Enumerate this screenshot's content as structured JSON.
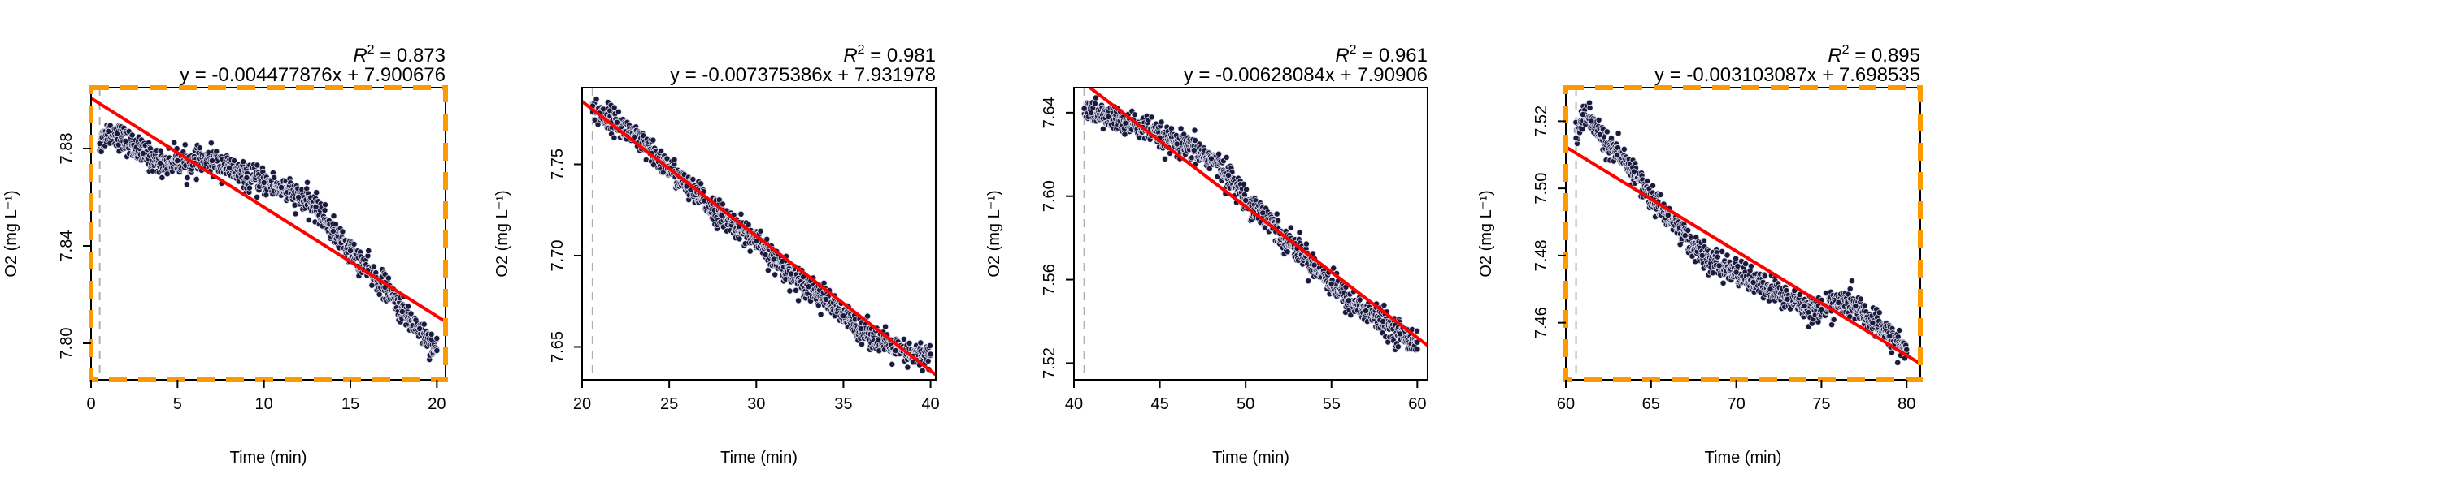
{
  "colors": {
    "point_fill": "#1a1a3a",
    "point_stroke": "#dcdcf0",
    "fit_line": "#ff0000",
    "vline": "#b0b0b0",
    "highlight_frame": "#ff9900",
    "frame": "#000000"
  },
  "chart_data": [
    {
      "type": "scatter",
      "title": "",
      "annotation_r2_prefix": "R",
      "annotation_r2_sup": "2",
      "annotation_r2_value": " = 0.873",
      "annotation_eq": "y = -0.004477876x + 7.900676",
      "xlabel": "Time (min)",
      "ylabel": "O2 (mg L⁻¹)",
      "xlim": [
        0,
        20.5
      ],
      "ylim": [
        7.785,
        7.905
      ],
      "xticks": [
        "0",
        "5",
        "10",
        "15",
        "20"
      ],
      "xtick_values": [
        0,
        5,
        10,
        15,
        20
      ],
      "yticks": [
        "7.80",
        "7.84",
        "7.88"
      ],
      "ytick_values": [
        7.8,
        7.84,
        7.88
      ],
      "highlighted": true,
      "vline_x": 0.5,
      "fit": {
        "slope": -0.004477876,
        "intercept": 7.900676,
        "x_range": [
          0,
          20.5
        ]
      },
      "series": [
        {
          "x": [
            0.5,
            1,
            1.5,
            2,
            3,
            4,
            5,
            6,
            7,
            8,
            9,
            10,
            11,
            12,
            13,
            14,
            15,
            16,
            17,
            18,
            19,
            20
          ],
          "y": [
            7.882,
            7.887,
            7.886,
            7.883,
            7.878,
            7.874,
            7.875,
            7.874,
            7.875,
            7.872,
            7.868,
            7.866,
            7.864,
            7.86,
            7.856,
            7.846,
            7.838,
            7.83,
            7.823,
            7.813,
            7.806,
            7.797
          ]
        }
      ]
    },
    {
      "type": "scatter",
      "title": "",
      "annotation_r2_prefix": "R",
      "annotation_r2_sup": "2",
      "annotation_r2_value": " = 0.981",
      "annotation_eq": "y = -0.007375386x + 7.931978",
      "xlabel": "Time (min)",
      "ylabel": "O2 (mg L⁻¹)",
      "xlim": [
        20,
        40.3
      ],
      "ylim": [
        7.632,
        7.792
      ],
      "xticks": [
        "20",
        "25",
        "30",
        "35",
        "40"
      ],
      "xtick_values": [
        20,
        25,
        30,
        35,
        40
      ],
      "yticks": [
        "7.65",
        "7.70",
        "7.75"
      ],
      "ytick_values": [
        7.65,
        7.7,
        7.75
      ],
      "highlighted": false,
      "vline_x": 20.6,
      "fit": {
        "slope": -0.007375386,
        "intercept": 7.931978,
        "x_range": [
          20,
          40.3
        ]
      },
      "series": [
        {
          "x": [
            20.6,
            21,
            22,
            23,
            24,
            25,
            26,
            27,
            28,
            29,
            30,
            31,
            32,
            33,
            34,
            35,
            36,
            37,
            38,
            39,
            40
          ],
          "y": [
            7.782,
            7.778,
            7.773,
            7.765,
            7.756,
            7.748,
            7.738,
            7.73,
            7.722,
            7.716,
            7.708,
            7.698,
            7.69,
            7.683,
            7.676,
            7.667,
            7.66,
            7.654,
            7.648,
            7.645,
            7.646
          ]
        }
      ]
    },
    {
      "type": "scatter",
      "title": "",
      "annotation_r2_prefix": "R",
      "annotation_r2_sup": "2",
      "annotation_r2_value": " = 0.961",
      "annotation_eq": "y = -0.00628084x + 7.90906",
      "xlabel": "Time (min)",
      "ylabel": "O2 (mg L⁻¹)",
      "xlim": [
        40,
        60.6
      ],
      "ylim": [
        7.512,
        7.652
      ],
      "xticks": [
        "40",
        "45",
        "50",
        "55",
        "60"
      ],
      "xtick_values": [
        40,
        45,
        50,
        55,
        60
      ],
      "yticks": [
        "7.52",
        "7.56",
        "7.60",
        "7.64"
      ],
      "ytick_values": [
        7.52,
        7.56,
        7.6,
        7.64
      ],
      "highlighted": false,
      "vline_x": 40.6,
      "fit": {
        "slope": -0.00628084,
        "intercept": 7.90906,
        "x_range": [
          40,
          60.6
        ]
      },
      "series": [
        {
          "x": [
            40.6,
            41,
            42,
            43,
            44,
            45,
            46,
            47,
            48,
            49,
            50,
            51,
            52,
            53,
            54,
            55,
            56,
            57,
            58,
            59,
            60
          ],
          "y": [
            7.642,
            7.64,
            7.638,
            7.635,
            7.633,
            7.628,
            7.625,
            7.622,
            7.618,
            7.61,
            7.598,
            7.592,
            7.582,
            7.575,
            7.567,
            7.558,
            7.55,
            7.545,
            7.54,
            7.534,
            7.53
          ]
        }
      ]
    },
    {
      "type": "scatter",
      "title": "",
      "annotation_r2_prefix": "R",
      "annotation_r2_sup": "2",
      "annotation_r2_value": " = 0.895",
      "annotation_eq": "y = -0.003103087x + 7.698535",
      "xlabel": "Time (min)",
      "ylabel": "O2 (mg L⁻¹)",
      "xlim": [
        60,
        80.8
      ],
      "ylim": [
        7.443,
        7.53
      ],
      "xticks": [
        "60",
        "65",
        "70",
        "75",
        "80"
      ],
      "xtick_values": [
        60,
        65,
        70,
        75,
        80
      ],
      "yticks": [
        "7.46",
        "7.48",
        "7.50",
        "7.52"
      ],
      "ytick_values": [
        7.46,
        7.48,
        7.5,
        7.52
      ],
      "highlighted": true,
      "vline_x": 60.6,
      "fit": {
        "slope": -0.003103087,
        "intercept": 7.698535,
        "x_range": [
          60,
          80.8
        ]
      },
      "series": [
        {
          "x": [
            60.6,
            61,
            61.5,
            62,
            63,
            64,
            65,
            66,
            67,
            68,
            69,
            70,
            71,
            72,
            73,
            74,
            75,
            76,
            77,
            78,
            79,
            80
          ],
          "y": [
            7.515,
            7.522,
            7.52,
            7.516,
            7.51,
            7.505,
            7.497,
            7.492,
            7.486,
            7.48,
            7.477,
            7.475,
            7.472,
            7.47,
            7.467,
            7.465,
            7.464,
            7.466,
            7.465,
            7.46,
            7.456,
            7.452
          ]
        }
      ]
    }
  ]
}
